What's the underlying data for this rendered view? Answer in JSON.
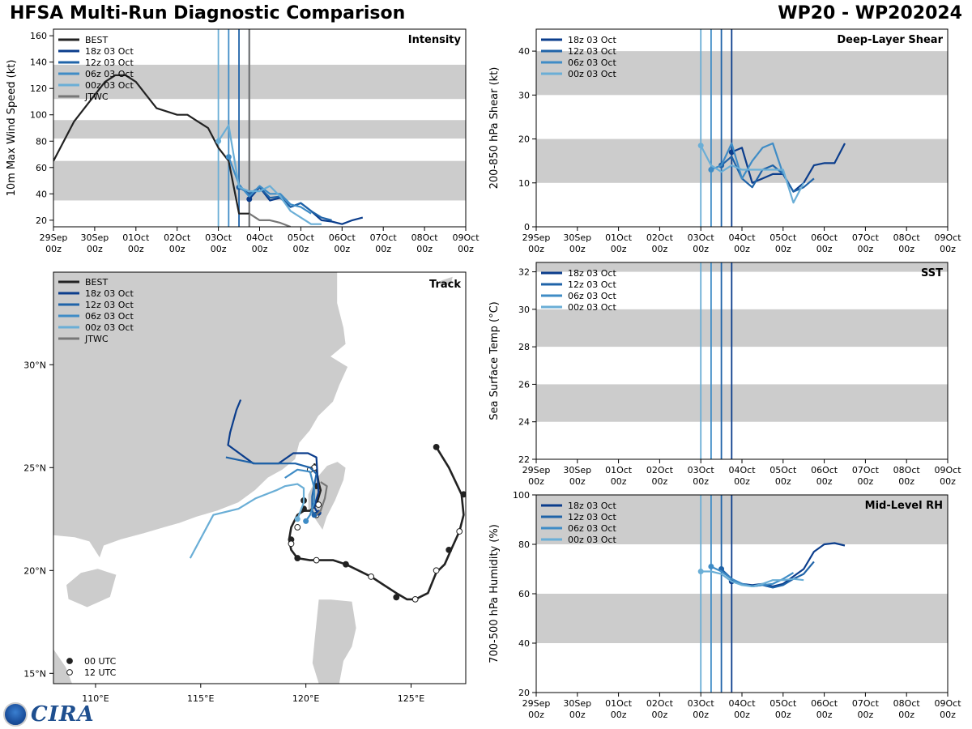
{
  "header": {
    "title": "HFSA Multi-Run Diagnostic Comparison",
    "storm": "WP20 - WP202024"
  },
  "logo": {
    "text": "CIRA"
  },
  "colors": {
    "BEST": "#222222",
    "JTWC": "#777777",
    "18z 03 Oct": "#0b3d8c",
    "12z 03 Oct": "#1f63a8",
    "06z 03 Oct": "#3f8cc6",
    "00z 03 Oct": "#6aaed6",
    "band": "#cccccc",
    "land": "#cccccc"
  },
  "time_axis": {
    "ticks": [
      "29Sep 00z",
      "30Sep 00z",
      "01Oct 00z",
      "02Oct 00z",
      "03Oct 00z",
      "04Oct 00z",
      "05Oct 00z",
      "06Oct 00z",
      "07Oct 00z",
      "08Oct 00z",
      "09Oct 00z"
    ],
    "init_times_days": [
      4.0,
      4.25,
      4.5,
      4.75
    ]
  },
  "chart_data": [
    {
      "id": "intensity",
      "type": "line",
      "title": "Intensity",
      "ylabel": "10m Max Wind Speed (kt)",
      "ylim": [
        15,
        165
      ],
      "yticks": [
        20,
        40,
        60,
        80,
        100,
        120,
        140,
        160
      ],
      "bands": [
        [
          35,
          65
        ],
        [
          82,
          96
        ],
        [
          112,
          138
        ]
      ],
      "legend": [
        "BEST",
        "18z 03 Oct",
        "12z 03 Oct",
        "06z 03 Oct",
        "00z 03 Oct",
        "JTWC"
      ],
      "series": [
        {
          "name": "BEST",
          "x": [
            0,
            0.5,
            1,
            1.25,
            1.5,
            1.75,
            2,
            2.25,
            2.5,
            3.0,
            3.25,
            3.5,
            3.75,
            4.0,
            4.25,
            4.5,
            4.75
          ],
          "y": [
            65,
            95,
            115,
            125,
            130,
            130,
            125,
            115,
            105,
            100,
            100,
            95,
            90,
            75,
            65,
            25,
            25
          ]
        },
        {
          "name": "18z 03 Oct",
          "x": [
            4.75,
            5.0,
            5.25,
            5.5,
            5.75,
            6.0,
            6.25,
            6.5,
            6.75,
            7.0,
            7.25,
            7.5
          ],
          "y": [
            36,
            45,
            35,
            37,
            30,
            33,
            27,
            20,
            19,
            17,
            20,
            22
          ]
        },
        {
          "name": "12z 03 Oct",
          "x": [
            4.5,
            4.75,
            5.0,
            5.25,
            5.5,
            5.75,
            6.0,
            6.25,
            6.5,
            6.75
          ],
          "y": [
            45,
            40,
            45,
            37,
            38,
            30,
            33,
            27,
            22,
            20
          ]
        },
        {
          "name": "06z 03 Oct",
          "x": [
            4.25,
            4.5,
            4.75,
            5.0,
            5.25,
            5.5,
            5.75,
            6.0,
            6.25
          ],
          "y": [
            68,
            47,
            38,
            46,
            40,
            40,
            32,
            30,
            25
          ]
        },
        {
          "name": "00z 03 Oct",
          "x": [
            4.0,
            4.25,
            4.5,
            4.75,
            5.0,
            5.25,
            5.5,
            5.75,
            6.0,
            6.25,
            6.5
          ],
          "y": [
            80,
            92,
            45,
            42,
            42,
            46,
            38,
            27,
            22,
            17,
            17
          ]
        },
        {
          "name": "JTWC",
          "x": [
            4.75,
            5.0,
            5.25,
            5.5,
            5.75
          ],
          "y": [
            25,
            20,
            20,
            18,
            15
          ]
        }
      ]
    },
    {
      "id": "shear",
      "type": "line",
      "title": "Deep-Layer Shear",
      "ylabel": "200-850 hPa Shear (kt)",
      "ylim": [
        0,
        45
      ],
      "yticks": [
        0,
        10,
        20,
        30,
        40
      ],
      "bands": [
        [
          10,
          20
        ],
        [
          30,
          40
        ]
      ],
      "legend": [
        "18z 03 Oct",
        "12z 03 Oct",
        "06z 03 Oct",
        "00z 03 Oct"
      ],
      "series": [
        {
          "name": "18z 03 Oct",
          "x": [
            4.75,
            5.0,
            5.25,
            5.5,
            5.75,
            6.0,
            6.25,
            6.5,
            6.75,
            7.0,
            7.25,
            7.5
          ],
          "y": [
            17,
            18,
            10,
            11,
            12,
            12,
            8,
            10,
            14,
            14.5,
            14.5,
            19
          ]
        },
        {
          "name": "12z 03 Oct",
          "x": [
            4.5,
            4.75,
            5.0,
            5.25,
            5.5,
            5.75,
            6.0,
            6.25,
            6.5,
            6.75
          ],
          "y": [
            14,
            16,
            11,
            9,
            13,
            14,
            12,
            8,
            9,
            11
          ]
        },
        {
          "name": "06z 03 Oct",
          "x": [
            4.25,
            4.5,
            4.75,
            5.0,
            5.25,
            5.5,
            5.75,
            6.0
          ],
          "y": [
            13,
            14,
            19,
            11,
            15,
            18,
            19,
            12
          ]
        },
        {
          "name": "00z 03 Oct",
          "x": [
            4.0,
            4.25,
            4.5,
            4.75,
            5.0,
            5.25,
            5.5,
            5.75,
            6.0,
            6.25,
            6.5
          ],
          "y": [
            18.5,
            14,
            12.5,
            14,
            13,
            13,
            13,
            13,
            13,
            5.5,
            10
          ]
        }
      ]
    },
    {
      "id": "sst",
      "type": "line",
      "title": "SST",
      "ylabel": "Sea Surface Temp (°C)",
      "ylim": [
        22,
        32.5
      ],
      "yticks": [
        22,
        24,
        26,
        28,
        30,
        32
      ],
      "bands": [
        [
          24,
          26
        ],
        [
          28,
          30
        ],
        [
          32,
          32.5
        ]
      ],
      "legend": [
        "18z 03 Oct",
        "12z 03 Oct",
        "06z 03 Oct",
        "00z 03 Oct"
      ],
      "series": []
    },
    {
      "id": "rh",
      "type": "line",
      "title": "Mid-Level RH",
      "ylabel": "700-500 hPa Humidity (%)",
      "ylim": [
        20,
        100
      ],
      "yticks": [
        20,
        40,
        60,
        80,
        100
      ],
      "bands": [
        [
          40,
          60
        ],
        [
          80,
          100
        ]
      ],
      "legend": [
        "18z 03 Oct",
        "12z 03 Oct",
        "06z 03 Oct",
        "00z 03 Oct"
      ],
      "series": [
        {
          "name": "18z 03 Oct",
          "x": [
            4.75,
            5.0,
            5.25,
            5.5,
            5.75,
            6.0,
            6.25,
            6.5,
            6.75,
            7.0,
            7.25,
            7.5
          ],
          "y": [
            65,
            64,
            63.5,
            64,
            63,
            64,
            67,
            70,
            77,
            80,
            80.5,
            79.5
          ]
        },
        {
          "name": "12z 03 Oct",
          "x": [
            4.5,
            4.75,
            5.0,
            5.25,
            5.5,
            5.75,
            6.0,
            6.25,
            6.5,
            6.75
          ],
          "y": [
            70,
            66,
            64,
            63,
            63.5,
            62.5,
            63.5,
            66,
            68,
            73
          ]
        },
        {
          "name": "06z 03 Oct",
          "x": [
            4.25,
            4.5,
            4.75,
            5.0,
            5.25,
            5.5,
            5.75,
            6.0,
            6.25
          ],
          "y": [
            71,
            69,
            66,
            64,
            63,
            63.5,
            64,
            66,
            68.5
          ]
        },
        {
          "name": "00z 03 Oct",
          "x": [
            4.0,
            4.25,
            4.5,
            4.75,
            5.0,
            5.25,
            5.5,
            5.75,
            6.0,
            6.25,
            6.5
          ],
          "y": [
            69,
            69,
            68,
            65,
            63.5,
            63,
            64,
            65.5,
            65.5,
            66,
            65.5
          ]
        }
      ]
    },
    {
      "id": "track",
      "type": "scatter",
      "title": "Track",
      "xlim": [
        108,
        127.6
      ],
      "ylim": [
        14.5,
        34.5
      ],
      "xticks": [
        110,
        115,
        120,
        125
      ],
      "xtick_labels": [
        "110°E",
        "115°E",
        "120°E",
        "125°E"
      ],
      "yticks": [
        15,
        20,
        25,
        30
      ],
      "ytick_labels": [
        "15°N",
        "20°N",
        "25°N",
        "30°N"
      ],
      "legend": [
        "BEST",
        "18z 03 Oct",
        "12z 03 Oct",
        "06z 03 Oct",
        "00z 03 Oct",
        "JTWC"
      ],
      "marker_legend": [
        "00 UTC",
        "12 UTC"
      ],
      "series": [
        {
          "name": "BEST",
          "lon": [
            126.2,
            126.8,
            127.4,
            127.5,
            127.3,
            126.9,
            126.6,
            126.2,
            125.8,
            125.2,
            124.8,
            124.3,
            123.7,
            123.1,
            122.5,
            121.9,
            121.3,
            120.7,
            120.2,
            119.6,
            119.3,
            119.2,
            119.3,
            119.6,
            119.9,
            120.2,
            120.5,
            120.7,
            120.6,
            120.5,
            120.4
          ],
          "lat": [
            26.0,
            25.0,
            23.7,
            22.7,
            21.9,
            21.0,
            20.3,
            19.9,
            18.9,
            18.6,
            18.6,
            18.9,
            19.3,
            19.7,
            20.0,
            20.3,
            20.5,
            20.5,
            20.5,
            20.6,
            21.0,
            21.5,
            22.1,
            22.7,
            22.9,
            22.9,
            23.2,
            23.9,
            24.3,
            24.9,
            25.2
          ],
          "marker_lon": [
            126.2,
            127.5,
            126.8,
            127.3,
            126.2,
            125.2,
            124.3,
            123.1,
            121.9,
            120.5,
            119.6,
            119.3,
            119.3,
            119.6,
            119.9,
            120.5,
            120.6,
            120.5,
            120.4,
            120.2,
            119.9
          ],
          "marker_lat": [
            26.0,
            23.7,
            21.0,
            21.9,
            20.0,
            18.6,
            18.7,
            19.7,
            20.3,
            20.5,
            20.6,
            21.5,
            21.3,
            22.1,
            23.0,
            24.1,
            23.2,
            22.7,
            25.0,
            24.9,
            23.4
          ],
          "marker_kind": [
            0,
            0,
            0,
            1,
            1,
            1,
            0,
            1,
            0,
            1,
            0,
            0,
            1,
            1,
            0,
            0,
            1,
            1,
            1,
            1,
            0
          ]
        },
        {
          "name": "18z 03 Oct",
          "lon": [
            120.6,
            120.5,
            120.4,
            120.6,
            120.5,
            120.1,
            119.4,
            118.7,
            117.5,
            116.3,
            116.4,
            116.7,
            116.9
          ],
          "lat": [
            22.8,
            22.9,
            23.1,
            23.8,
            25.5,
            25.7,
            25.7,
            25.2,
            25.2,
            26.1,
            26.7,
            27.8,
            28.3
          ]
        },
        {
          "name": "12z 03 Oct",
          "lon": [
            120.4,
            120.3,
            120.3,
            120.5,
            120.2,
            119.5,
            118.7,
            117.6,
            116.2
          ],
          "lat": [
            22.7,
            22.9,
            23.6,
            24.7,
            25.0,
            25.2,
            25.2,
            25.2,
            25.5
          ]
        },
        {
          "name": "06z 03 Oct",
          "lon": [
            120.0,
            120.2,
            120.4,
            120.4,
            120.2,
            119.6,
            119.0
          ],
          "lat": [
            22.4,
            22.7,
            23.3,
            24.0,
            24.8,
            24.9,
            24.5
          ]
        },
        {
          "name": "00z 03 Oct",
          "lon": [
            119.6,
            119.9,
            119.9,
            119.6,
            119.0,
            118.6,
            117.6,
            116.8,
            115.6,
            114.5
          ],
          "lat": [
            22.5,
            23.3,
            24.0,
            24.2,
            24.1,
            23.9,
            23.5,
            23.0,
            22.7,
            20.6
          ]
        },
        {
          "name": "JTWC",
          "lon": [
            120.5,
            120.7,
            120.9,
            121.0,
            120.7
          ],
          "lat": [
            22.7,
            22.9,
            23.5,
            24.1,
            24.3
          ]
        }
      ]
    }
  ]
}
